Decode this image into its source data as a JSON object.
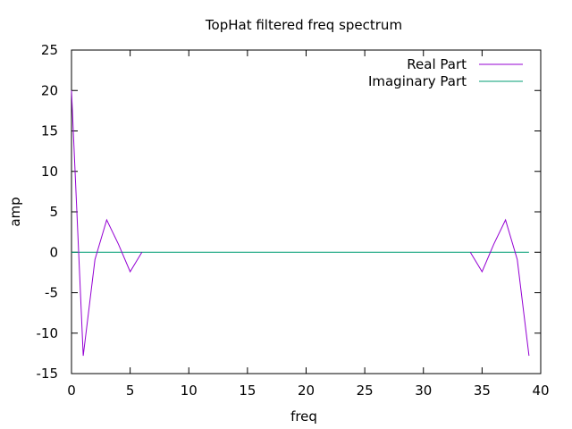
{
  "chart_data": {
    "type": "line",
    "title": "TopHat filtered freq spectrum",
    "xlabel": "freq",
    "ylabel": "amp",
    "xlim": [
      0,
      40
    ],
    "ylim": [
      -15,
      25
    ],
    "xticks": [
      0,
      5,
      10,
      15,
      20,
      25,
      30,
      35,
      40
    ],
    "yticks": [
      -15,
      -10,
      -5,
      0,
      5,
      10,
      15,
      20,
      25
    ],
    "grid": false,
    "legend_position": "top-right",
    "series": [
      {
        "name": "Real Part",
        "color": "#9400d3",
        "segments": [
          {
            "x": [
              0,
              1,
              2,
              3,
              4,
              5,
              6
            ],
            "y": [
              20,
              -12.8,
              -0.9,
              4,
              1,
              -2.4,
              0
            ]
          },
          {
            "x": [
              34,
              35,
              36,
              37,
              38,
              39
            ],
            "y": [
              0,
              -2.4,
              1,
              4,
              -0.9,
              -12.8
            ]
          }
        ]
      },
      {
        "name": "Imaginary Part",
        "color": "#009e73",
        "segments": [
          {
            "x": [
              0,
              39
            ],
            "y": [
              0,
              0
            ]
          }
        ]
      }
    ]
  }
}
